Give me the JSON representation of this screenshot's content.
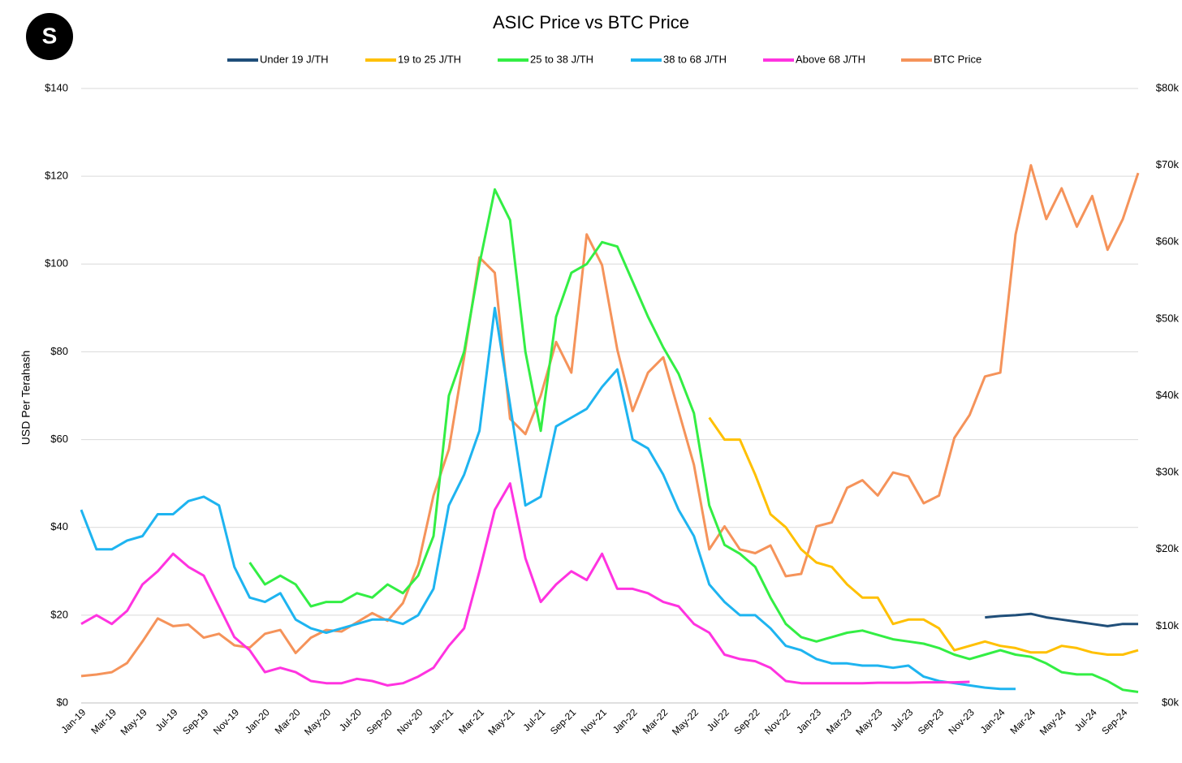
{
  "logo": "S",
  "chart_data": {
    "type": "line",
    "title": "ASIC Price vs BTC Price",
    "y_label": "USD Per Terahash",
    "categories": [
      "Jan-19",
      null,
      "Mar-19",
      null,
      "May-19",
      null,
      "Jul-19",
      null,
      "Sep-19",
      null,
      "Nov-19",
      null,
      "Jan-20",
      null,
      "Mar-20",
      null,
      "May-20",
      null,
      "Jul-20",
      null,
      "Sep-20",
      null,
      "Nov-20",
      null,
      "Jan-21",
      null,
      "Mar-21",
      null,
      "May-21",
      null,
      "Jul-21",
      null,
      "Sep-21",
      null,
      "Nov-21",
      null,
      "Jan-22",
      null,
      "Mar-22",
      null,
      "May-22",
      null,
      "Jul-22",
      null,
      "Sep-22",
      null,
      "Nov-22",
      null,
      "Jan-23",
      null,
      "Mar-23",
      null,
      "May-23",
      null,
      "Jul-23",
      null,
      "Sep-23",
      null,
      "Nov-23",
      null,
      "Jan-24",
      null,
      "Mar-24",
      null,
      "May-24",
      null,
      "Jul-24",
      null,
      "Sep-24",
      null
    ],
    "series": [
      {
        "name": "Under 19 J/TH",
        "color": "#1f4e79",
        "values": [
          null,
          null,
          null,
          null,
          null,
          null,
          null,
          null,
          null,
          null,
          null,
          null,
          null,
          null,
          null,
          null,
          null,
          null,
          null,
          null,
          null,
          null,
          null,
          null,
          null,
          null,
          null,
          null,
          null,
          null,
          null,
          null,
          null,
          null,
          null,
          null,
          null,
          null,
          null,
          null,
          null,
          null,
          null,
          null,
          null,
          null,
          null,
          null,
          null,
          null,
          null,
          null,
          null,
          null,
          null,
          null,
          null,
          null,
          null,
          19.5,
          19.8,
          20,
          20.3,
          19.5,
          19,
          18.5,
          18,
          17.5,
          18,
          18
        ]
      },
      {
        "name": "19 to 25 J/TH",
        "color": "#ffc000",
        "values": [
          null,
          null,
          null,
          null,
          null,
          null,
          null,
          null,
          null,
          null,
          null,
          null,
          null,
          null,
          null,
          null,
          null,
          null,
          null,
          null,
          null,
          null,
          null,
          null,
          null,
          null,
          null,
          null,
          null,
          null,
          null,
          null,
          null,
          null,
          null,
          null,
          null,
          null,
          null,
          null,
          null,
          65,
          60,
          60,
          52,
          43,
          40,
          35,
          32,
          31,
          27,
          24,
          24,
          18,
          19,
          19,
          17,
          12,
          13,
          14,
          13,
          12.5,
          11.5,
          11.5,
          13,
          12.5,
          11.5,
          11,
          11,
          12
        ]
      },
      {
        "name": "25 to 38 J/TH",
        "color": "#33ee44",
        "values": [
          null,
          null,
          null,
          null,
          null,
          null,
          null,
          null,
          null,
          null,
          null,
          32,
          27,
          29,
          27,
          22,
          23,
          23,
          25,
          24,
          27,
          25,
          29,
          38,
          70,
          80,
          100,
          117,
          110,
          80,
          62,
          88,
          98,
          100,
          105,
          104,
          96,
          88,
          81,
          75,
          66,
          45,
          36,
          34,
          31,
          24,
          18,
          15,
          14,
          15,
          16,
          16.5,
          15.5,
          14.5,
          14,
          13.5,
          12.5,
          11,
          10,
          11,
          12,
          11,
          10.5,
          9,
          7,
          6.5,
          6.5,
          5,
          3,
          2.5
        ]
      },
      {
        "name": "38 to 68 J/TH",
        "color": "#1eb4f0",
        "values": [
          44,
          35,
          35,
          37,
          38,
          43,
          43,
          46,
          47,
          45,
          31,
          24,
          23,
          25,
          19,
          17,
          16,
          17,
          18,
          19,
          19,
          18,
          20,
          26,
          45,
          52,
          62,
          90,
          68,
          45,
          47,
          63,
          65,
          67,
          72,
          76,
          60,
          58,
          52,
          44,
          38,
          27,
          23,
          20,
          20,
          17,
          13,
          12,
          10,
          9,
          9,
          8.5,
          8.5,
          8,
          8.5,
          6,
          5,
          4.5,
          4,
          3.5,
          3.2,
          3.2,
          null,
          null,
          null,
          null,
          null,
          null,
          null,
          null
        ]
      },
      {
        "name": "Above 68 J/TH",
        "color": "#ff33e0",
        "values": [
          18,
          20,
          18,
          21,
          27,
          30,
          34,
          31,
          29,
          22,
          15,
          12,
          7,
          8,
          7,
          5,
          4.5,
          4.5,
          5.5,
          5,
          4,
          4.5,
          6,
          8,
          13,
          17,
          30,
          44,
          50,
          33,
          23,
          27,
          30,
          28,
          34,
          26,
          26,
          25,
          23,
          22,
          18,
          16,
          11,
          10,
          9.5,
          8,
          5,
          4.5,
          4.5,
          4.5,
          4.5,
          4.5,
          4.6,
          4.6,
          4.6,
          4.7,
          4.7,
          4.7,
          4.8,
          null,
          null,
          null,
          null,
          null,
          null,
          null,
          null,
          null,
          null,
          null
        ]
      },
      {
        "name": "BTC Price",
        "color": "#f5935a",
        "axis": "y2",
        "values": [
          3500,
          3700,
          4000,
          5200,
          8000,
          11000,
          10000,
          10200,
          8500,
          9000,
          7500,
          7200,
          9000,
          9500,
          6500,
          8500,
          9500,
          9300,
          10500,
          11700,
          10700,
          13000,
          18000,
          27000,
          33000,
          45000,
          58000,
          56000,
          37000,
          35000,
          40000,
          47000,
          43000,
          61000,
          57000,
          46000,
          38000,
          43000,
          45000,
          38000,
          31000,
          20000,
          23000,
          20000,
          19500,
          20500,
          16500,
          16800,
          23000,
          23500,
          28000,
          29000,
          27000,
          30000,
          29500,
          26000,
          27000,
          34500,
          37500,
          42500,
          43000,
          61000,
          70000,
          63000,
          67000,
          62000,
          66000,
          59000,
          63000,
          69000
        ]
      }
    ],
    "ylim": [
      0,
      140
    ],
    "yticks": [
      {
        "value": 0,
        "label": "$0"
      },
      {
        "value": 20,
        "label": "$20"
      },
      {
        "value": 40,
        "label": "$40"
      },
      {
        "value": 60,
        "label": "$60"
      },
      {
        "value": 80,
        "label": "$80"
      },
      {
        "value": 100,
        "label": "$100"
      },
      {
        "value": 120,
        "label": "$120"
      },
      {
        "value": 140,
        "label": "$140"
      }
    ],
    "y2lim": [
      0,
      80000
    ],
    "y2ticks": [
      {
        "value": 0,
        "label": "$0k"
      },
      {
        "value": 10000,
        "label": "$10k"
      },
      {
        "value": 20000,
        "label": "$20k"
      },
      {
        "value": 30000,
        "label": "$30k"
      },
      {
        "value": 40000,
        "label": "$40k"
      },
      {
        "value": 50000,
        "label": "$50k"
      },
      {
        "value": 60000,
        "label": "$60k"
      },
      {
        "value": 70000,
        "label": "$70k"
      },
      {
        "value": 80000,
        "label": "$80k"
      }
    ],
    "grid": true
  }
}
